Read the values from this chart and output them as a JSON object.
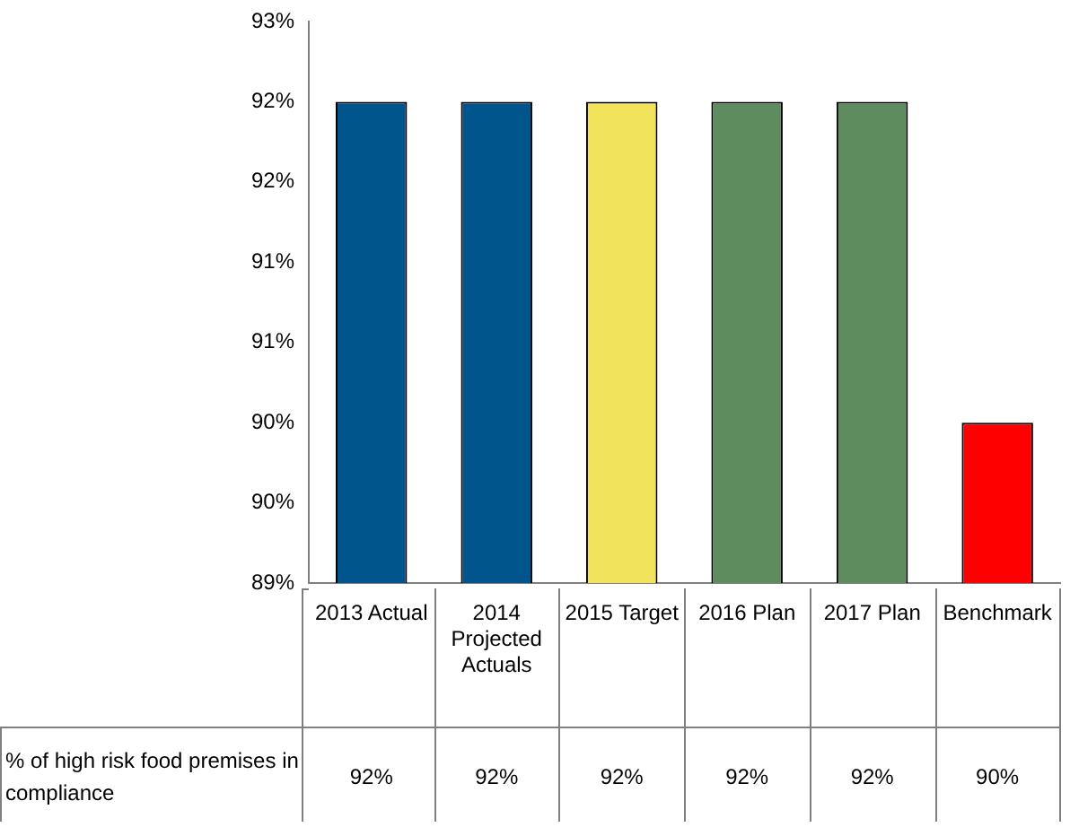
{
  "chart_data": {
    "type": "bar",
    "categories": [
      "2013 Actual",
      "2014 Projected Actuals",
      "2015 Target",
      "2016 Plan",
      "2017 Plan",
      "Benchmark"
    ],
    "series": [
      {
        "name": "% of high risk food premises in compliance",
        "colors": [
          "#00558c",
          "#00558c",
          "#f2e35c",
          "#5e8c5e",
          "#5e8c5e",
          "#ff0000"
        ],
        "values": [
          92,
          92,
          92,
          92,
          92,
          90
        ],
        "value_labels": [
          "92%",
          "92%",
          "92%",
          "92%",
          "92%",
          "90%"
        ]
      }
    ],
    "ylim": [
      89,
      92.5
    ],
    "yticks": [
      {
        "value": 89,
        "label": "89%"
      },
      {
        "value": 89.5,
        "label": "90%"
      },
      {
        "value": 90,
        "label": "90%"
      },
      {
        "value": 90.5,
        "label": "91%"
      },
      {
        "value": 91,
        "label": "91%"
      },
      {
        "value": 91.5,
        "label": "92%"
      },
      {
        "value": 92,
        "label": "92%"
      },
      {
        "value": 92.5,
        "label": "93%"
      }
    ],
    "grid": false,
    "legend": false
  }
}
